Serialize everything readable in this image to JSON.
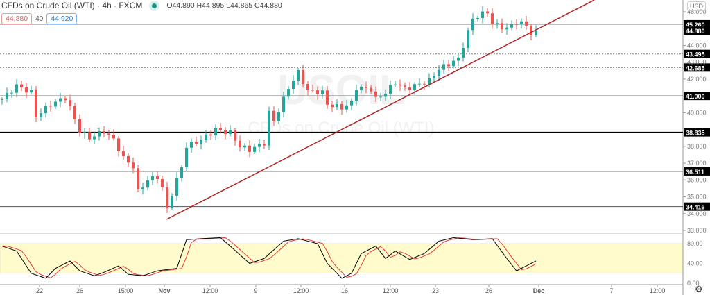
{
  "header": {
    "title": "CFDs on Crude Oil (WTI) · 4h · FXCM",
    "ohlc": "O44.890 H44.895 L44.865 C44.880",
    "bid": "44.880",
    "spread": "40",
    "ask": "44.920",
    "currency": "USD"
  },
  "colors": {
    "up": "#26a69a",
    "down": "#ef5350",
    "trend": "#b22222",
    "stochK": "#000000",
    "stochD": "#e53935",
    "band": "#fffbcc"
  },
  "watermark": {
    "symbol": "USOIL",
    "name": "CFDs on Crude Oil (WTI)"
  },
  "chart_data": {
    "type": "candlestick",
    "price_axis": {
      "min": 33,
      "max": 46,
      "ticks": [
        "46.000",
        "44.000",
        "43.000",
        "42.000",
        "40.000",
        "38.000",
        "37.000",
        "36.000",
        "35.000",
        "34.000",
        "33.000"
      ]
    },
    "time_labels": [
      "22",
      "26",
      "15:00",
      "Nov",
      "12:00",
      "9",
      "12:00",
      "16",
      "12:00",
      "23",
      "26",
      "Dec",
      "7",
      "12:00"
    ],
    "levels": [
      {
        "price": "45.260",
        "style": "solid"
      },
      {
        "price": "44.880",
        "style": "current"
      },
      {
        "price": "43.495",
        "style": "dotted"
      },
      {
        "price": "42.685",
        "style": "dotted"
      },
      {
        "price": "41.000",
        "style": "solid"
      },
      {
        "price": "38.835",
        "style": "bold"
      },
      {
        "price": "36.511",
        "style": "solid"
      },
      {
        "price": "34.416",
        "style": "solid"
      }
    ],
    "price_path": [
      [
        0,
        40.8
      ],
      [
        3,
        41.6
      ],
      [
        6,
        41.2
      ],
      [
        7,
        39.8
      ],
      [
        10,
        40.5
      ],
      [
        13,
        40.9
      ],
      [
        14,
        40.3
      ],
      [
        16,
        38.9
      ],
      [
        18,
        38.5
      ],
      [
        21,
        38.9
      ],
      [
        23,
        38.4
      ],
      [
        25,
        37.3
      ],
      [
        27,
        36.8
      ],
      [
        28,
        35.3
      ],
      [
        30,
        36.0
      ],
      [
        32,
        36.2
      ],
      [
        33,
        35.5
      ],
      [
        34,
        34.3
      ],
      [
        35,
        35.2
      ],
      [
        37,
        36.8
      ],
      [
        38,
        38.0
      ],
      [
        41,
        38.4
      ],
      [
        44,
        39.0
      ],
      [
        47,
        38.8
      ],
      [
        49,
        38.0
      ],
      [
        51,
        37.8
      ],
      [
        54,
        38.2
      ],
      [
        55,
        40.0
      ],
      [
        56,
        39.5
      ],
      [
        58,
        40.8
      ],
      [
        59,
        41.5
      ],
      [
        61,
        42.4
      ],
      [
        63,
        41.3
      ],
      [
        66,
        41.2
      ],
      [
        67,
        40.5
      ],
      [
        70,
        40.3
      ],
      [
        72,
        40.6
      ],
      [
        73,
        41.5
      ],
      [
        76,
        41.4
      ],
      [
        77,
        40.8
      ],
      [
        79,
        41.2
      ],
      [
        81,
        41.8
      ],
      [
        83,
        41.4
      ],
      [
        86,
        41.7
      ],
      [
        88,
        41.9
      ],
      [
        90,
        42.6
      ],
      [
        92,
        42.9
      ],
      [
        94,
        43.2
      ],
      [
        96,
        44.8
      ],
      [
        97,
        45.6
      ],
      [
        100,
        46.0
      ],
      [
        101,
        45.3
      ],
      [
        104,
        45.0
      ],
      [
        106,
        45.4
      ],
      [
        108,
        45.2
      ],
      [
        109,
        44.7
      ],
      [
        110,
        44.88
      ]
    ],
    "trendline": [
      [
        33.9,
        33.66
      ],
      [
        122,
        46.7
      ]
    ],
    "oscillator": {
      "ticks": [
        "80.00",
        "40.00",
        "0.00"
      ],
      "band": [
        20,
        80
      ],
      "k": [
        [
          0,
          75
        ],
        [
          3,
          65
        ],
        [
          6,
          20
        ],
        [
          9,
          10
        ],
        [
          11,
          30
        ],
        [
          14,
          45
        ],
        [
          16,
          25
        ],
        [
          19,
          15
        ],
        [
          21,
          22
        ],
        [
          24,
          35
        ],
        [
          26,
          18
        ],
        [
          29,
          15
        ],
        [
          32,
          25
        ],
        [
          36,
          30
        ],
        [
          38,
          88
        ],
        [
          41,
          90
        ],
        [
          45,
          92
        ],
        [
          47,
          75
        ],
        [
          51,
          40
        ],
        [
          54,
          50
        ],
        [
          58,
          85
        ],
        [
          61,
          90
        ],
        [
          65,
          80
        ],
        [
          67,
          40
        ],
        [
          70,
          10
        ],
        [
          72,
          20
        ],
        [
          74,
          60
        ],
        [
          77,
          75
        ],
        [
          79,
          50
        ],
        [
          81,
          65
        ],
        [
          84,
          48
        ],
        [
          87,
          60
        ],
        [
          90,
          85
        ],
        [
          93,
          92
        ],
        [
          97,
          88
        ],
        [
          101,
          90
        ],
        [
          104,
          50
        ],
        [
          106,
          25
        ],
        [
          109,
          40
        ],
        [
          110,
          45
        ]
      ]
    }
  }
}
